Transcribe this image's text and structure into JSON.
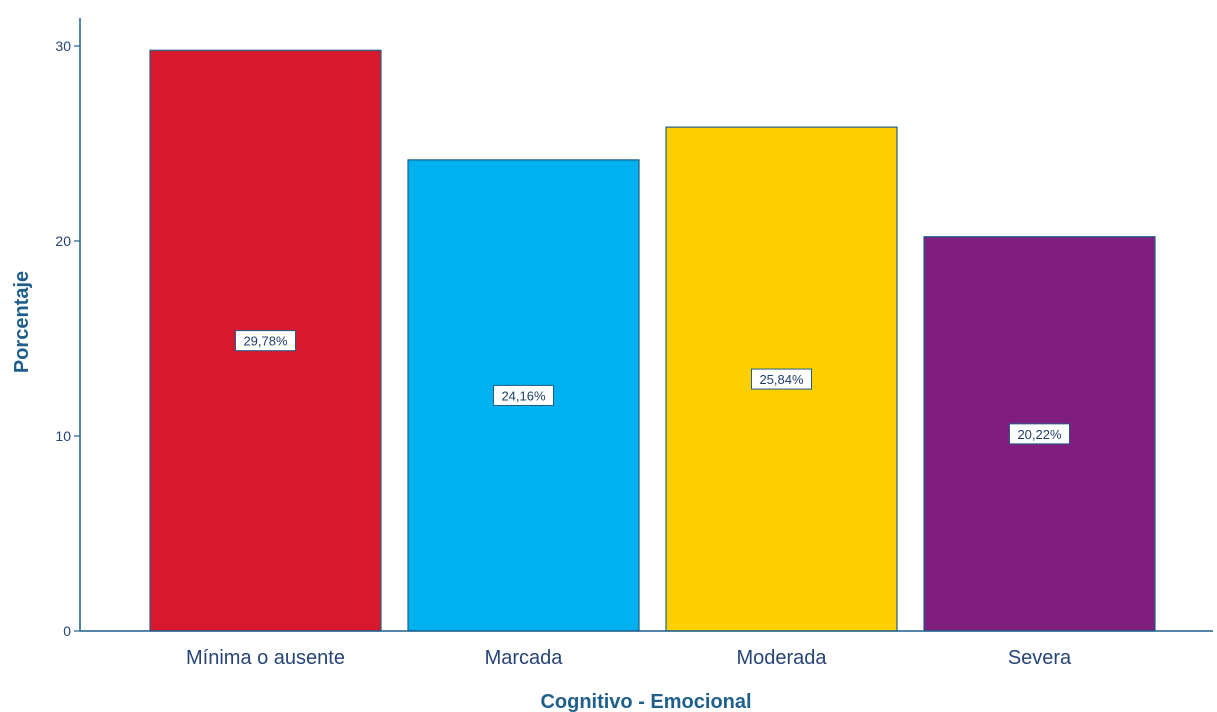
{
  "chart_data": {
    "type": "bar",
    "title": "",
    "xlabel": "Cognitivo - Emocional",
    "ylabel": "Porcentaje",
    "ylim": [
      0,
      31.5
    ],
    "yticks": [
      0,
      10,
      20,
      30
    ],
    "ytick_labels": [
      "0",
      "10",
      "20",
      "30"
    ],
    "grid": false,
    "categories": [
      "Mínima o ausente",
      "Marcada",
      "Moderada",
      "Severa"
    ],
    "values": [
      29.78,
      24.16,
      25.84,
      20.22
    ],
    "data_labels": [
      "29,78%",
      "24,16%",
      "25,84%",
      "20,22%"
    ],
    "colors": [
      "#d7192d",
      "#00b0ef",
      "#ffcf00",
      "#7f1e7c"
    ],
    "axis_color": "#1f5f8b"
  }
}
